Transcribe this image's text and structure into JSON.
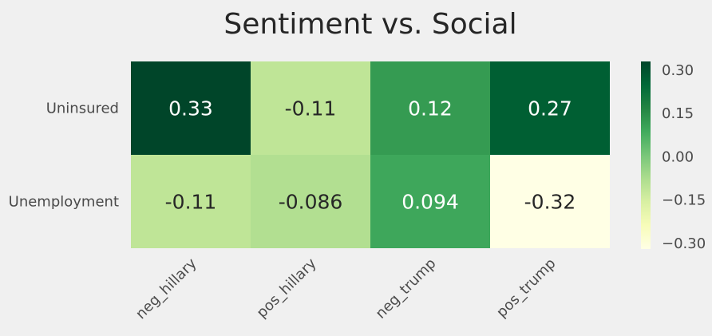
{
  "chart_data": {
    "type": "heatmap",
    "title": "Sentiment vs. Social",
    "xlabel": "",
    "ylabel": "",
    "x_categories": [
      "neg_hillary",
      "pos_hillary",
      "neg_trump",
      "pos_trump"
    ],
    "y_categories": [
      "Uninsured",
      "Unemployment"
    ],
    "values": [
      [
        0.33,
        -0.11,
        0.12,
        0.27
      ],
      [
        -0.11,
        -0.086,
        0.094,
        -0.32
      ]
    ],
    "cell_labels": [
      [
        "0.33",
        "-0.11",
        "0.12",
        "0.27"
      ],
      [
        "-0.11",
        "-0.086",
        "0.094",
        "-0.32"
      ]
    ],
    "colormap": "YlGn",
    "vmin": -0.32,
    "vmax": 0.33,
    "colorbar": {
      "ticks": [
        0.3,
        0.15,
        0.0,
        -0.15,
        -0.3
      ],
      "tick_labels": [
        "0.30",
        "0.15",
        "0.00",
        "−0.15",
        "−0.30"
      ]
    },
    "grid": false
  }
}
